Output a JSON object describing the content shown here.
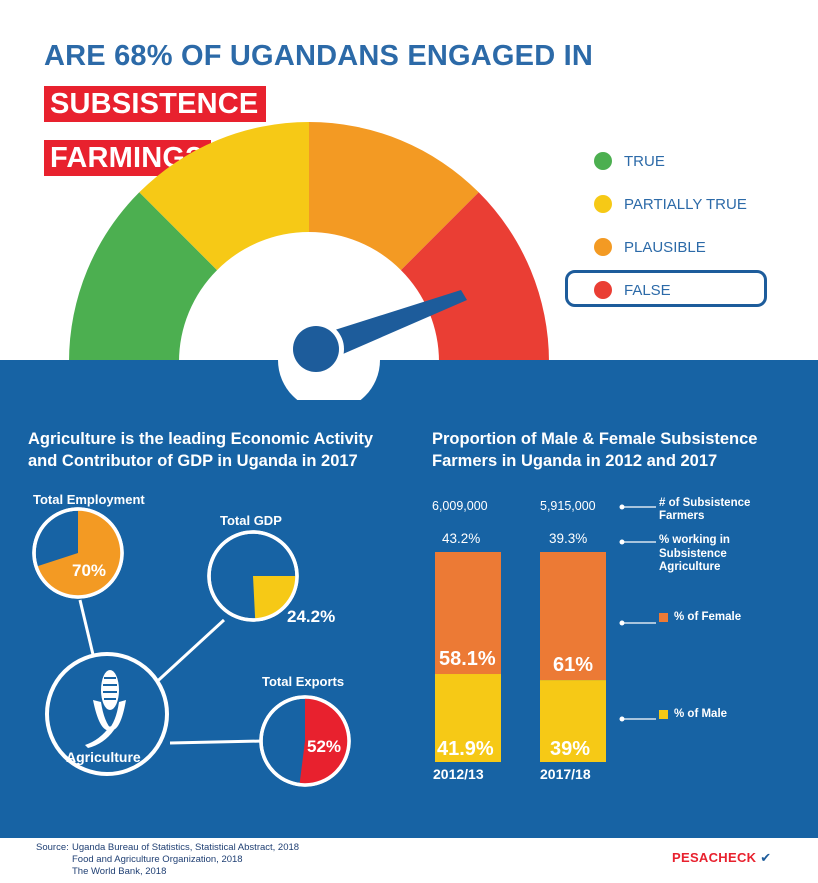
{
  "title": {
    "part1": "ARE 68% OF UGANDANS ENGAGED IN ",
    "highlight1": "SUBSISTENCE",
    "highlight2": "FARMING?"
  },
  "verdict_legend": [
    {
      "label": "TRUE",
      "color": "#4caf50"
    },
    {
      "label": "PARTIALLY TRUE",
      "color": "#f6c916"
    },
    {
      "label": "PLAUSIBLE",
      "color": "#f39a23"
    },
    {
      "label": "FALSE",
      "color": "#ea3e34",
      "selected": true
    }
  ],
  "gauge": {
    "verdict": "FALSE",
    "segments": [
      "#4caf50",
      "#f6c916",
      "#f39a23",
      "#ea3e34"
    ]
  },
  "left_panel": {
    "title_line1": "Agriculture is the leading Economic Activity",
    "title_line2": "and Contributor of GDP in Uganda in 2017",
    "hub_label": "Agriculture",
    "hub_icon": "maize-icon"
  },
  "right_panel": {
    "title_line1": "Proportion of Male & Female Subsistence",
    "title_line2": "Farmers in Uganda in 2012 and 2017",
    "legend_farmers_line1": "# of Subsistence",
    "legend_farmers_line2": "Farmers",
    "legend_pct_line1": "% working in",
    "legend_pct_line2": "Subsistence",
    "legend_pct_line3": "Agriculture",
    "legend_female": "% of Female",
    "legend_male": "% of Male"
  },
  "chart_data": [
    {
      "type": "pie",
      "title": "Total Employment",
      "values": [
        70,
        30
      ],
      "value_label": "70%",
      "colors": [
        "#f39a23",
        "#1763a4"
      ]
    },
    {
      "type": "pie",
      "title": "Total GDP",
      "values": [
        24.2,
        75.8
      ],
      "value_label": "24.2%",
      "colors": [
        "#f6c916",
        "#1763a4"
      ]
    },
    {
      "type": "pie",
      "title": "Total Exports",
      "values": [
        52,
        48
      ],
      "value_label": "52%",
      "colors": [
        "#e8212e",
        "#1763a4"
      ]
    },
    {
      "type": "bar",
      "stacked": true,
      "categories": [
        "2012/13",
        "2017/18"
      ],
      "series": [
        {
          "name": "% of Female",
          "values": [
            58.1,
            61
          ],
          "labels": [
            "58.1%",
            "61%"
          ],
          "color": "#ec7a35"
        },
        {
          "name": "% of Male",
          "values": [
            41.9,
            39
          ],
          "labels": [
            "41.9%",
            "39%"
          ],
          "color": "#f6c916"
        }
      ],
      "farmers": [
        "6,009,000",
        "5,915,000"
      ],
      "pct_working": [
        "43.2%",
        "39.3%"
      ]
    }
  ],
  "source": {
    "label": "Source:",
    "lines": [
      "Uganda Bureau of Statistics, Statistical Abstract, 2018",
      "Food and Agriculture Organization, 2018",
      "The World Bank, 2018"
    ]
  },
  "logo": {
    "text1": "PESA",
    "text2": "CHECK"
  }
}
